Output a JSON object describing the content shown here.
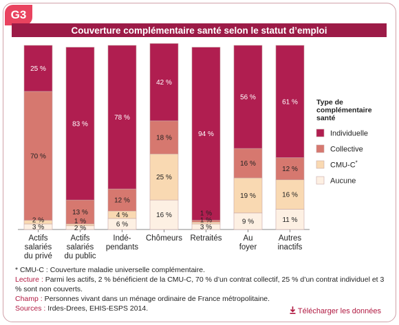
{
  "badge": "G3",
  "title": "Couverture complémentaire santé selon le statut d’emploi",
  "legend": {
    "title": [
      "Type de",
      "complémentaire",
      "santé"
    ],
    "items": [
      {
        "label": "Individuelle",
        "color": "#b01e50"
      },
      {
        "label": "Collective",
        "color": "#d6786f"
      },
      {
        "label": "CMU-C",
        "sup": "*",
        "color": "#f9d9b2"
      },
      {
        "label": "Aucune",
        "color": "#fdf0e3"
      }
    ]
  },
  "chart_data": {
    "type": "bar",
    "stacked": true,
    "categories": [
      [
        "Actifs",
        "salariés",
        "du privé"
      ],
      [
        "Actifs",
        "salariés",
        "du public"
      ],
      [
        "Indé-",
        "pendants"
      ],
      [
        "Chômeurs"
      ],
      [
        "Retraités"
      ],
      [
        "Au",
        "foyer"
      ],
      [
        "Autres",
        "inactifs"
      ]
    ],
    "ylim": [
      0,
      100
    ],
    "series": [
      {
        "name": "Aucune",
        "values": [
          3,
          2,
          6,
          16,
          3,
          9,
          11
        ],
        "labels": [
          "3 %",
          "2 %",
          "6 %",
          "16 %",
          "3 %",
          "9 %",
          "11 %"
        ]
      },
      {
        "name": "CMU-C",
        "values": [
          2,
          1,
          4,
          25,
          1,
          19,
          16
        ],
        "labels": [
          "2 %",
          "1 %",
          "4 %",
          "25 %",
          "1 %",
          "19 %",
          "16 %"
        ]
      },
      {
        "name": "Collective",
        "values": [
          70,
          13,
          12,
          18,
          1,
          16,
          12
        ],
        "labels": [
          "70 %",
          "13 %",
          "12 %",
          "18 %",
          "1 %",
          "16 %",
          "12 %"
        ]
      },
      {
        "name": "Individuelle",
        "values": [
          25,
          83,
          78,
          42,
          94,
          56,
          61
        ],
        "labels": [
          "25 %",
          "83 %",
          "78 %",
          "42 %",
          "94 %",
          "56 %",
          "61 %"
        ]
      }
    ]
  },
  "notes": {
    "cmu": "* CMU-C : Couverture maladie universelle complémentaire.",
    "lecture_key": "Lecture :",
    "lecture": "Parmi les actifs, 2 % bénéficient de la CMU-C, 70 % d’un contrat collectif, 25 % d’un contrat individuel et 3 % sont non couverts.",
    "champ_key": "Champ :",
    "champ": "Personnes vivant dans un ménage ordinaire de France métropolitaine.",
    "sources_key": "Sources :",
    "sources": "Irdes-Drees, EHIS-ESPS 2014."
  },
  "download": {
    "label": "Télécharger les données",
    "icon": "download-icon"
  }
}
